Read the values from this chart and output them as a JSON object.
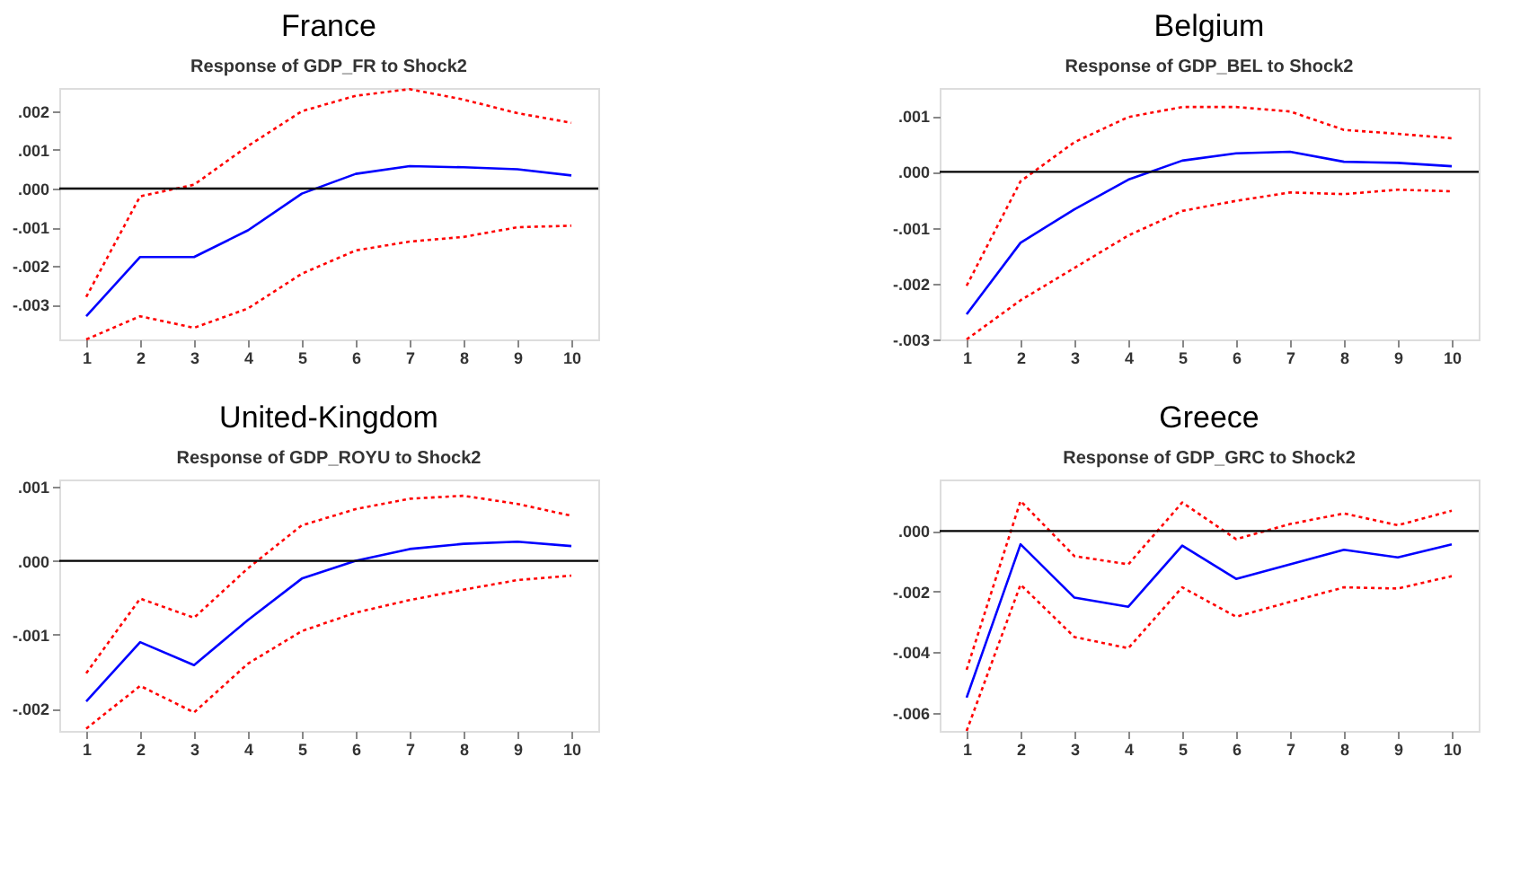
{
  "chart_data": [
    {
      "type": "line",
      "title": "France",
      "subtitle": "Response of GDP_FR to Shock2",
      "x": [
        1,
        2,
        3,
        4,
        5,
        6,
        7,
        8,
        9,
        10
      ],
      "xlim": [
        0.5,
        10.5
      ],
      "xticks": [
        1,
        2,
        3,
        4,
        5,
        6,
        7,
        8,
        9,
        10
      ],
      "ylim": [
        -0.0039,
        0.0026
      ],
      "yticks": [
        {
          "value": -0.003,
          "label": "-.003"
        },
        {
          "value": -0.002,
          "label": "-.002"
        },
        {
          "value": -0.001,
          "label": "-.001"
        },
        {
          "value": 0,
          "label": ".000"
        },
        {
          "value": 0.001,
          "label": ".001"
        },
        {
          "value": 0.002,
          "label": ".002"
        }
      ],
      "grid": false,
      "marker": "none",
      "ref_lines": [
        {
          "axis": "y",
          "value": 0,
          "color": "#000000"
        }
      ],
      "series": [
        {
          "color": "#ff0000",
          "line_style": "dotted",
          "values": [
            -0.0028,
            -0.0002,
            0.0001,
            0.0011,
            0.002,
            0.0024,
            0.00257,
            0.0023,
            0.00195,
            0.0017
          ]
        },
        {
          "color": "#0000ff",
          "line_style": "solid",
          "values": [
            -0.0033,
            -0.00177,
            -0.00177,
            -0.00108,
            -0.00013,
            0.00038,
            0.00058,
            0.00055,
            0.0005,
            0.00034
          ]
        },
        {
          "color": "#ff0000",
          "line_style": "dotted",
          "values": [
            -0.0039,
            -0.0033,
            -0.0036,
            -0.0031,
            -0.0022,
            -0.0016,
            -0.00137,
            -0.00125,
            -0.001,
            -0.00096
          ]
        }
      ]
    },
    {
      "type": "line",
      "title": "Belgium",
      "subtitle": "Response of GDP_BEL to Shock2",
      "x": [
        1,
        2,
        3,
        4,
        5,
        6,
        7,
        8,
        9,
        10
      ],
      "xlim": [
        0.5,
        10.5
      ],
      "xticks": [
        1,
        2,
        3,
        4,
        5,
        6,
        7,
        8,
        9,
        10
      ],
      "ylim": [
        -0.003,
        0.0015
      ],
      "yticks": [
        {
          "value": -0.003,
          "label": "-.003"
        },
        {
          "value": -0.002,
          "label": "-.002"
        },
        {
          "value": -0.001,
          "label": "-.001"
        },
        {
          "value": 0,
          "label": ".000"
        },
        {
          "value": 0.001,
          "label": ".001"
        }
      ],
      "grid": false,
      "marker": "none",
      "ref_lines": [
        {
          "axis": "y",
          "value": 0,
          "color": "#000000"
        }
      ],
      "series": [
        {
          "color": "#ff0000",
          "line_style": "dotted",
          "values": [
            -0.00204,
            -0.00017,
            0.00053,
            0.00098,
            0.00116,
            0.00116,
            0.00108,
            0.00075,
            0.00068,
            0.0006
          ]
        },
        {
          "color": "#0000ff",
          "line_style": "solid",
          "values": [
            -0.00255,
            -0.00127,
            -0.00067,
            -0.00014,
            0.0002,
            0.00033,
            0.00036,
            0.00018,
            0.00016,
            0.0001
          ]
        },
        {
          "color": "#ff0000",
          "line_style": "dotted",
          "values": [
            -0.003,
            -0.0023,
            -0.00172,
            -0.00114,
            -0.0007,
            -0.00052,
            -0.00037,
            -0.0004,
            -0.00032,
            -0.00035
          ]
        }
      ]
    },
    {
      "type": "line",
      "title": "United-Kingdom",
      "subtitle": "Response of GDP_ROYU to Shock2",
      "x": [
        1,
        2,
        3,
        4,
        5,
        6,
        7,
        8,
        9,
        10
      ],
      "xlim": [
        0.5,
        10.5
      ],
      "xticks": [
        1,
        2,
        3,
        4,
        5,
        6,
        7,
        8,
        9,
        10
      ],
      "ylim": [
        -0.0023,
        0.0011
      ],
      "yticks": [
        {
          "value": -0.002,
          "label": "-.002"
        },
        {
          "value": -0.001,
          "label": "-.001"
        },
        {
          "value": 0,
          "label": ".000"
        },
        {
          "value": 0.001,
          "label": ".001"
        }
      ],
      "grid": false,
      "marker": "none",
      "ref_lines": [
        {
          "axis": "y",
          "value": 0,
          "color": "#000000"
        }
      ],
      "series": [
        {
          "color": "#ff0000",
          "line_style": "dotted",
          "values": [
            -0.00152,
            -0.00051,
            -0.00077,
            -0.0001,
            0.00048,
            0.0007,
            0.00084,
            0.00088,
            0.00077,
            0.00061
          ]
        },
        {
          "color": "#0000ff",
          "line_style": "solid",
          "values": [
            -0.0019,
            -0.0011,
            -0.00141,
            -0.0008,
            -0.00024,
            0.0,
            0.00016,
            0.00023,
            0.00026,
            0.0002
          ]
        },
        {
          "color": "#ff0000",
          "line_style": "dotted",
          "values": [
            -0.00227,
            -0.00169,
            -0.00205,
            -0.00139,
            -0.00095,
            -0.0007,
            -0.00053,
            -0.00039,
            -0.00026,
            -0.0002
          ]
        }
      ]
    },
    {
      "type": "line",
      "title": "Greece",
      "subtitle": "Response of GDP_GRC to Shock2",
      "x": [
        1,
        2,
        3,
        4,
        5,
        6,
        7,
        8,
        9,
        10
      ],
      "xlim": [
        0.5,
        10.5
      ],
      "xticks": [
        1,
        2,
        3,
        4,
        5,
        6,
        7,
        8,
        9,
        10
      ],
      "ylim": [
        -0.0066,
        0.0017
      ],
      "yticks": [
        {
          "value": -0.006,
          "label": "-.006"
        },
        {
          "value": -0.004,
          "label": "-.004"
        },
        {
          "value": -0.002,
          "label": "-.002"
        },
        {
          "value": 0,
          "label": ".000"
        }
      ],
      "grid": false,
      "marker": "none",
      "ref_lines": [
        {
          "axis": "y",
          "value": 0,
          "color": "#000000"
        }
      ],
      "series": [
        {
          "color": "#ff0000",
          "line_style": "dotted",
          "values": [
            -0.00458,
            0.00099,
            -0.00083,
            -0.0011,
            0.00094,
            -0.00027,
            0.00023,
            0.00058,
            0.00019,
            0.00067
          ]
        },
        {
          "color": "#0000ff",
          "line_style": "solid",
          "values": [
            -0.0055,
            -0.00044,
            -0.0022,
            -0.0025,
            -0.00048,
            -0.00158,
            -0.0011,
            -0.00062,
            -0.00087,
            -0.00044
          ]
        },
        {
          "color": "#ff0000",
          "line_style": "dotted",
          "values": [
            -0.0066,
            -0.00177,
            -0.0035,
            -0.00387,
            -0.00186,
            -0.00283,
            -0.00234,
            -0.00186,
            -0.0019,
            -0.00149
          ]
        }
      ]
    }
  ]
}
